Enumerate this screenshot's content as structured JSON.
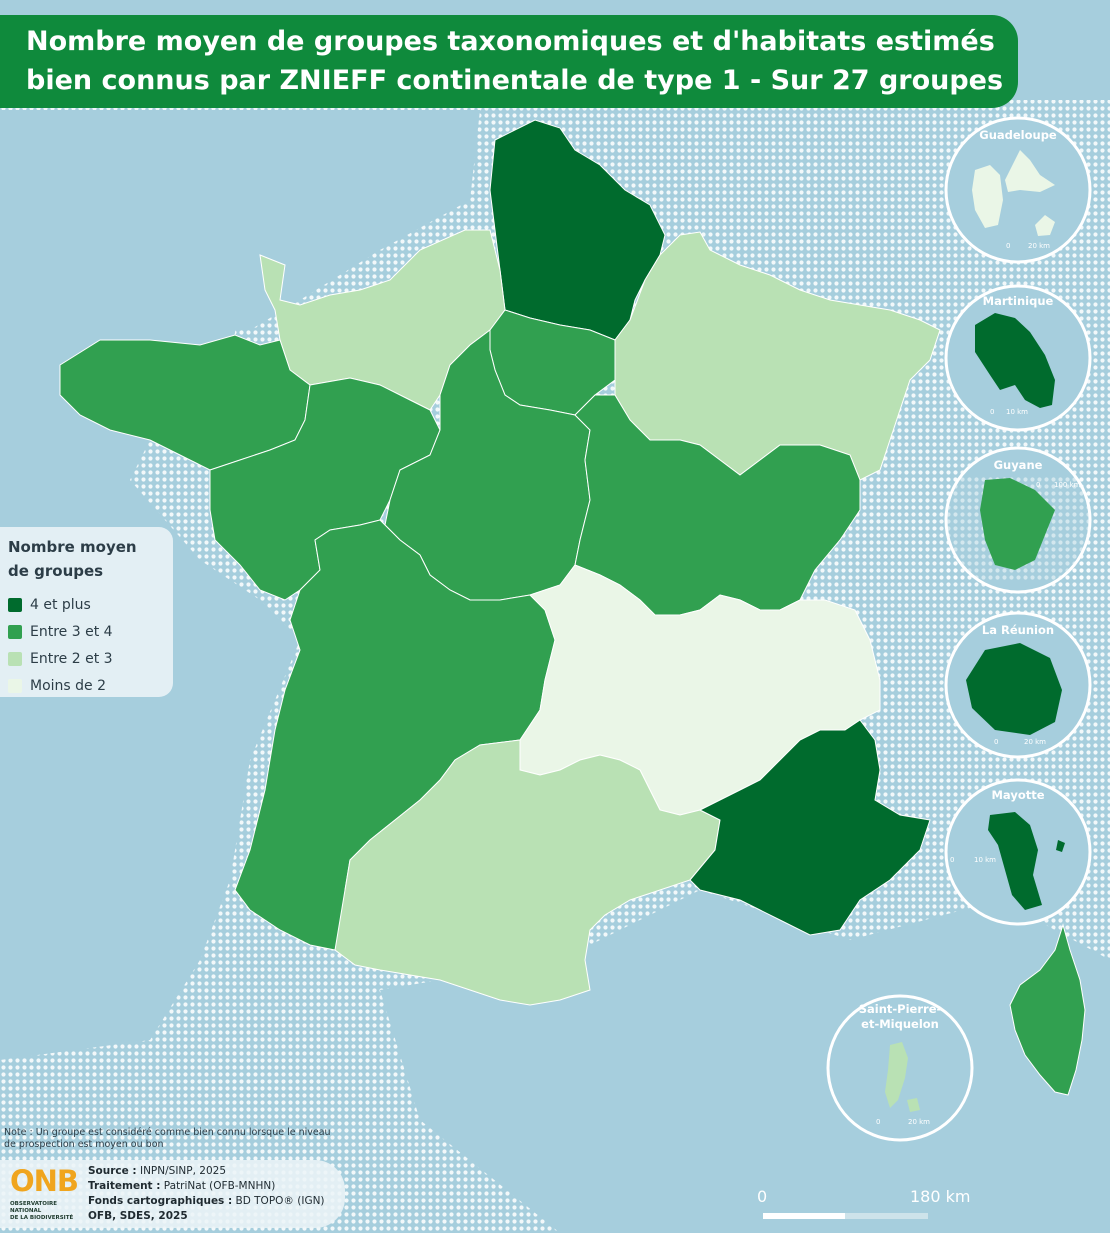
{
  "title": {
    "line1": "Nombre moyen de groupes taxonomiques et d'habitats estimés",
    "line2": "bien connus par ZNIEFF continentale de type 1 - Sur 27 groupes"
  },
  "colors": {
    "c4": "#006b2d",
    "c3": "#31a050",
    "c2": "#b9e1b4",
    "c1": "#eaf6e7",
    "sea": "#a6cedd",
    "foreign_land": "#ffffff",
    "title_bg": "#0f8a3c"
  },
  "legend": {
    "title_line1": "Nombre moyen",
    "title_line2": "de groupes",
    "items": [
      {
        "label": "4 et plus",
        "class": "c4"
      },
      {
        "label": "Entre 3 et 4",
        "class": "c3"
      },
      {
        "label": "Entre 2 et 3",
        "class": "c2"
      },
      {
        "label": "Moins de 2",
        "class": "c1"
      }
    ]
  },
  "regions": [
    {
      "name": "Hauts-de-France",
      "class": "c4"
    },
    {
      "name": "Normandie",
      "class": "c2"
    },
    {
      "name": "Grand Est",
      "class": "c2"
    },
    {
      "name": "Île-de-France",
      "class": "c3"
    },
    {
      "name": "Bretagne",
      "class": "c3"
    },
    {
      "name": "Pays de la Loire",
      "class": "c3"
    },
    {
      "name": "Centre-Val de Loire",
      "class": "c3"
    },
    {
      "name": "Bourgogne-Franche-Comté",
      "class": "c3"
    },
    {
      "name": "Nouvelle-Aquitaine",
      "class": "c3"
    },
    {
      "name": "Auvergne-Rhône-Alpes",
      "class": "c1"
    },
    {
      "name": "Occitanie",
      "class": "c2"
    },
    {
      "name": "Provence-Alpes-Côte d'Azur",
      "class": "c4"
    },
    {
      "name": "Corse",
      "class": "c3"
    },
    {
      "name": "Guadeloupe",
      "class": "c1"
    },
    {
      "name": "Martinique",
      "class": "c4"
    },
    {
      "name": "Guyane",
      "class": "c3"
    },
    {
      "name": "La Réunion",
      "class": "c4"
    },
    {
      "name": "Mayotte",
      "class": "c4"
    },
    {
      "name": "Saint-Pierre-et-Miquelon",
      "class": "c2"
    }
  ],
  "insets": {
    "guadeloupe": {
      "label": "Guadeloupe",
      "scale0": "0",
      "scale1": "20 km"
    },
    "martinique": {
      "label": "Martinique",
      "scale0": "0",
      "scale1": "10 km"
    },
    "guyane": {
      "label": "Guyane",
      "scale0": "0",
      "scale1": "100 km"
    },
    "reunion": {
      "label": "La Réunion",
      "scale0": "0",
      "scale1": "20 km"
    },
    "mayotte": {
      "label": "Mayotte",
      "scale0": "0",
      "scale1": "10 km"
    },
    "spm": {
      "label_line1": "Saint-Pierre-",
      "label_line2": "et-Miquelon",
      "scale0": "0",
      "scale1": "20 km"
    }
  },
  "note": "Note : Un groupe est considéré comme bien connu lorsque le niveau de prospection est moyen ou bon",
  "logo": {
    "acronym": "ONB",
    "sub_line1": "OBSERVATOIRE NATIONAL",
    "sub_line2": "DE LA BIODIVERSITÉ"
  },
  "credits": {
    "source_key": "Source :",
    "source_val": " INPN/SINP, 2025",
    "traitement_key": "Traitement :",
    "traitement_val": " PatriNat (OFB-MNHN)",
    "fonds_key": "Fonds cartographiques :",
    "fonds_val": " BD TOPO® (IGN)",
    "authors": "OFB, SDES, 2025"
  },
  "scale": {
    "label0": "0",
    "label1": "180 km"
  }
}
